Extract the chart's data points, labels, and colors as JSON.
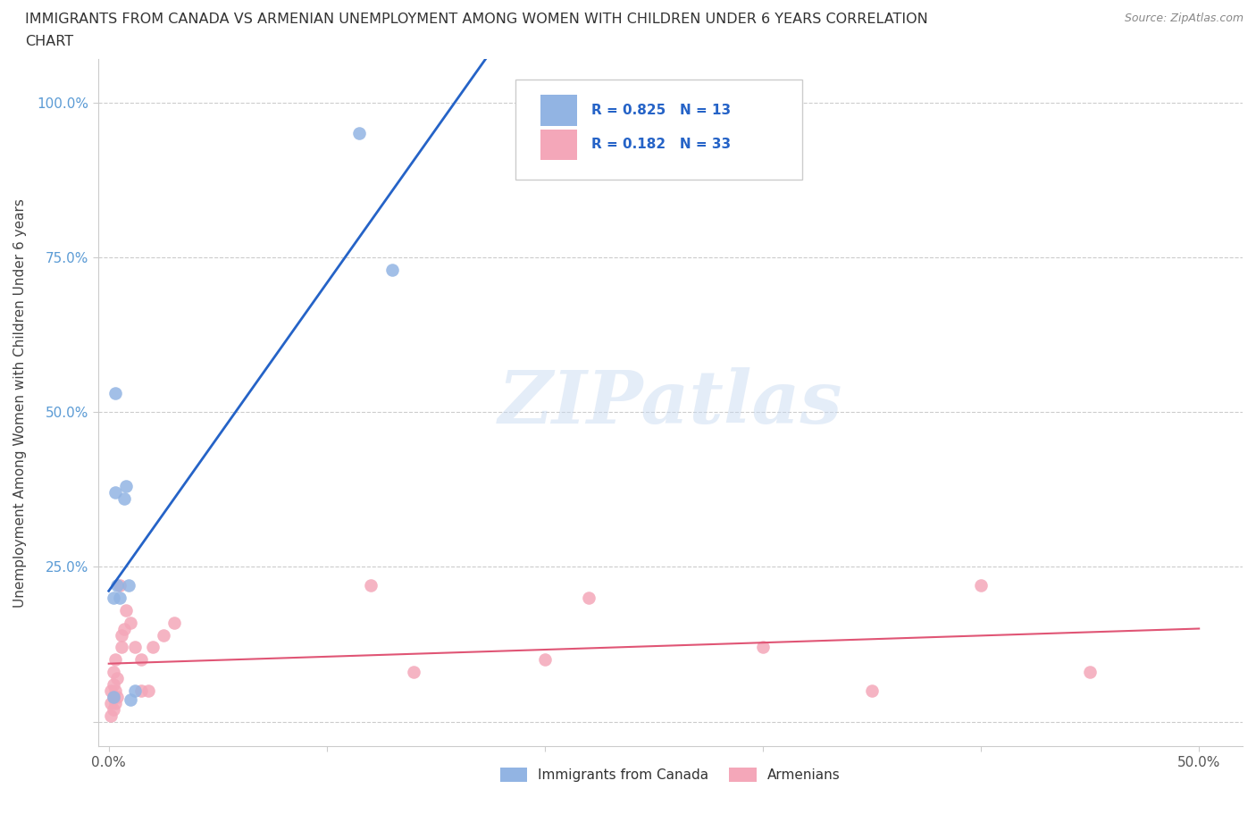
{
  "title_line1": "IMMIGRANTS FROM CANADA VS ARMENIAN UNEMPLOYMENT AMONG WOMEN WITH CHILDREN UNDER 6 YEARS CORRELATION",
  "title_line2": "CHART",
  "source": "Source: ZipAtlas.com",
  "ylabel": "Unemployment Among Women with Children Under 6 years",
  "legend_labels": [
    "Immigrants from Canada",
    "Armenians"
  ],
  "blue_R": "0.825",
  "blue_N": "13",
  "pink_R": "0.182",
  "pink_N": "33",
  "blue_color": "#92b4e3",
  "pink_color": "#f4a7b9",
  "blue_line_color": "#2563c7",
  "pink_line_color": "#e05575",
  "xlim": [
    0.0,
    0.5
  ],
  "ylim": [
    0.0,
    1.0
  ],
  "xticks": [
    0.0,
    0.1,
    0.2,
    0.3,
    0.4,
    0.5
  ],
  "xtick_labels": [
    "0.0%",
    "",
    "",
    "",
    "",
    "50.0%"
  ],
  "yticks": [
    0.0,
    0.25,
    0.5,
    0.75,
    1.0
  ],
  "ytick_labels": [
    "",
    "25.0%",
    "50.0%",
    "75.0%",
    "100.0%"
  ],
  "blue_x": [
    0.002,
    0.003,
    0.004,
    0.005,
    0.007,
    0.008,
    0.009,
    0.01,
    0.012,
    0.003,
    0.002,
    0.115,
    0.13
  ],
  "blue_y": [
    0.2,
    0.37,
    0.22,
    0.2,
    0.36,
    0.38,
    0.22,
    0.035,
    0.05,
    0.53,
    0.04,
    0.95,
    0.73
  ],
  "pink_x": [
    0.001,
    0.001,
    0.001,
    0.002,
    0.002,
    0.002,
    0.002,
    0.003,
    0.003,
    0.003,
    0.004,
    0.004,
    0.005,
    0.006,
    0.006,
    0.007,
    0.008,
    0.01,
    0.012,
    0.015,
    0.015,
    0.018,
    0.02,
    0.025,
    0.03,
    0.12,
    0.14,
    0.2,
    0.22,
    0.3,
    0.35,
    0.4,
    0.45
  ],
  "pink_y": [
    0.05,
    0.03,
    0.01,
    0.06,
    0.04,
    0.02,
    0.08,
    0.05,
    0.03,
    0.1,
    0.04,
    0.07,
    0.22,
    0.14,
    0.12,
    0.15,
    0.18,
    0.16,
    0.12,
    0.05,
    0.1,
    0.05,
    0.12,
    0.14,
    0.16,
    0.22,
    0.08,
    0.1,
    0.2,
    0.12,
    0.05,
    0.22,
    0.08
  ]
}
